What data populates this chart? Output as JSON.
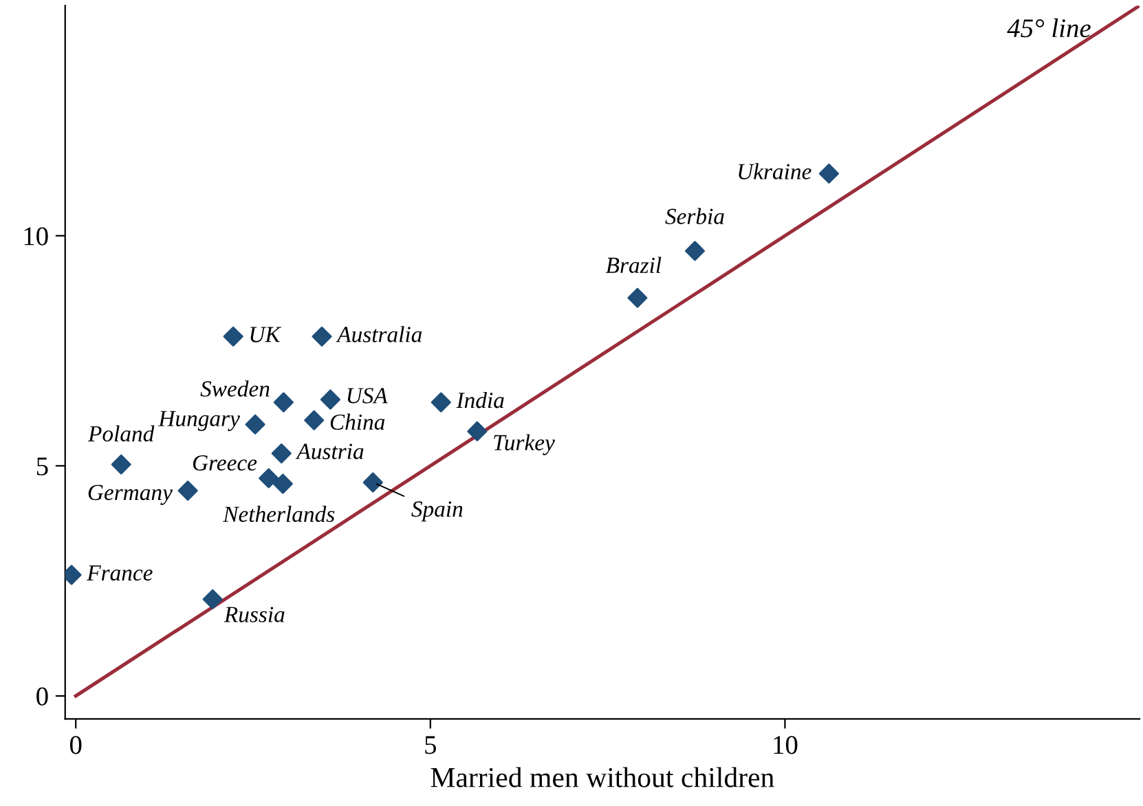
{
  "chart_data": {
    "type": "scatter",
    "xlabel": "Married men without children",
    "xlim": [
      -0.15,
      15
    ],
    "ylim": [
      -0.5,
      15
    ],
    "xticks": [
      0,
      5,
      10
    ],
    "yticks": [
      0,
      5,
      10
    ],
    "grid": false,
    "series": [
      {
        "marker": "diamond",
        "color": "#1f4e79",
        "x": [
          10.62,
          8.73,
          7.92,
          2.22,
          3.47,
          2.93,
          3.59,
          5.15,
          2.53,
          3.36,
          5.66,
          2.9,
          0.64,
          2.72,
          2.92,
          4.19,
          1.58,
          -0.06,
          1.93
        ],
        "values": [
          11.35,
          9.67,
          8.65,
          7.81,
          7.81,
          6.38,
          6.44,
          6.38,
          5.9,
          5.99,
          5.75,
          5.27,
          5.03,
          4.73,
          4.61,
          4.64,
          4.46,
          2.63,
          2.1
        ],
        "value_labels": [
          "Ukraine",
          "Serbia",
          "Brazil",
          "UK",
          "Australia",
          "Sweden",
          "USA",
          "India",
          "Hungary",
          "China",
          "Turkey",
          "Austria",
          "Poland",
          "Greece",
          "Netherlands",
          "Spain",
          "Germany",
          "France",
          "Russia"
        ]
      },
      {
        "type": "line",
        "color": "#9b2d3a",
        "x": [
          0,
          15
        ],
        "values": [
          0,
          15
        ]
      }
    ],
    "annotations": [
      "45° line"
    ]
  }
}
